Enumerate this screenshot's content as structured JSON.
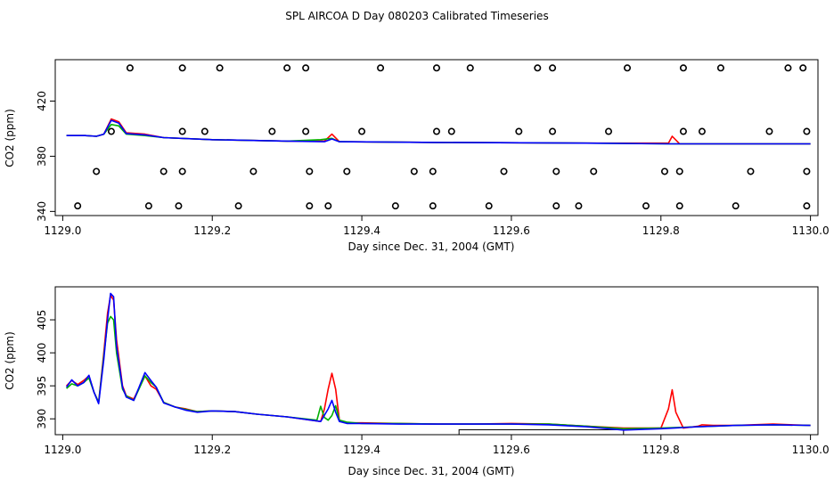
{
  "title": "SPL AIRCOA D  Day 080203  Calibrated Timeseries",
  "colors": {
    "red": "#ff0000",
    "green": "#00b000",
    "blue": "#0000ff",
    "axis": "#000000"
  },
  "chart_data": [
    {
      "type": "scatter+line",
      "xlabel": "Day since Dec. 31, 2004 (GMT)",
      "ylabel": "CO2 (ppm)",
      "xlim": [
        1128.99,
        1130.01
      ],
      "ylim": [
        337,
        450
      ],
      "xticks": [
        1129.0,
        1129.2,
        1129.4,
        1129.6,
        1129.8,
        1130.0
      ],
      "xtick_labels": [
        "1129.0",
        "1129.2",
        "1129.4",
        "1129.6",
        "1129.8",
        "1130.0"
      ],
      "yticks": [
        340,
        380,
        420
      ],
      "ytick_labels": [
        "340",
        "380",
        "420"
      ],
      "circle_groups": [
        {
          "y": 444,
          "x": [
            1129.09,
            1129.16,
            1129.21,
            1129.3,
            1129.325,
            1129.425,
            1129.5,
            1129.545,
            1129.635,
            1129.655,
            1129.755,
            1129.83,
            1129.88,
            1129.97,
            1129.99
          ]
        },
        {
          "y": 398,
          "x": [
            1129.065,
            1129.16,
            1129.19,
            1129.28,
            1129.325,
            1129.4,
            1129.5,
            1129.52,
            1129.61,
            1129.655,
            1129.73,
            1129.83,
            1129.855,
            1129.945,
            1129.995
          ]
        },
        {
          "y": 369,
          "x": [
            1129.045,
            1129.135,
            1129.16,
            1129.255,
            1129.33,
            1129.38,
            1129.47,
            1129.495,
            1129.59,
            1129.66,
            1129.71,
            1129.805,
            1129.825,
            1129.92,
            1129.995
          ]
        },
        {
          "y": 344,
          "x": [
            1129.02,
            1129.115,
            1129.155,
            1129.235,
            1129.33,
            1129.355,
            1129.445,
            1129.495,
            1129.57,
            1129.66,
            1129.69,
            1129.78,
            1129.825,
            1129.9,
            1129.995
          ]
        }
      ],
      "series": [
        {
          "name": "red",
          "color": "#ff0000",
          "x": [
            1129.005,
            1129.02,
            1129.03,
            1129.045,
            1129.055,
            1129.065,
            1129.075,
            1129.085,
            1129.11,
            1129.135,
            1129.2,
            1129.3,
            1129.35,
            1129.36,
            1129.37,
            1129.5,
            1129.7,
            1129.81,
            1129.815,
            1129.825,
            1129.9,
            1130.0
          ],
          "y": [
            395,
            395,
            395,
            394.5,
            396,
            407,
            405,
            397,
            396,
            393.5,
            392,
            391,
            391,
            396,
            390.5,
            390,
            389.5,
            389.5,
            394.5,
            389,
            389,
            389
          ]
        },
        {
          "name": "green",
          "color": "#00b000",
          "x": [
            1129.005,
            1129.02,
            1129.03,
            1129.045,
            1129.055,
            1129.065,
            1129.075,
            1129.085,
            1129.11,
            1129.135,
            1129.2,
            1129.3,
            1129.345,
            1129.36,
            1129.37,
            1129.5,
            1129.7,
            1129.81,
            1129.9,
            1130.0
          ],
          "y": [
            395,
            395,
            395,
            394.5,
            396,
            403,
            402,
            396,
            395,
            393.5,
            392,
            391,
            392,
            393,
            390.5,
            390,
            389.5,
            389,
            389,
            389
          ]
        },
        {
          "name": "blue",
          "color": "#0000ff",
          "x": [
            1129.005,
            1129.02,
            1129.03,
            1129.045,
            1129.055,
            1129.065,
            1129.075,
            1129.085,
            1129.11,
            1129.135,
            1129.2,
            1129.3,
            1129.35,
            1129.36,
            1129.37,
            1129.5,
            1129.7,
            1129.81,
            1129.9,
            1130.0
          ],
          "y": [
            395,
            395,
            395,
            394.5,
            396,
            406,
            404,
            396.5,
            395.5,
            393.5,
            392,
            391,
            390.5,
            392.5,
            390.5,
            390,
            389.5,
            389,
            389,
            389
          ]
        }
      ]
    },
    {
      "type": "line",
      "xlabel": "Day since Dec. 31, 2004 (GMT)",
      "ylabel": "CO2 (ppm)",
      "xlim": [
        1128.99,
        1130.01
      ],
      "ylim": [
        387.6,
        410
      ],
      "xticks": [
        1129.0,
        1129.2,
        1129.4,
        1129.6,
        1129.8,
        1130.0
      ],
      "xtick_labels": [
        "1129.0",
        "1129.2",
        "1129.4",
        "1129.6",
        "1129.8",
        "1130.0"
      ],
      "yticks": [
        390,
        395,
        400,
        405
      ],
      "ytick_labels": [
        "390",
        "395",
        "400",
        "405"
      ],
      "annotation": {
        "type": "bracket",
        "x": [
          1129.53,
          1129.75
        ],
        "y": 388.35
      },
      "series": [
        {
          "name": "red",
          "color": "#ff0000",
          "x": [
            1129.005,
            1129.012,
            1129.02,
            1129.028,
            1129.035,
            1129.042,
            1129.048,
            1129.055,
            1129.06,
            1129.064,
            1129.068,
            1129.072,
            1129.08,
            1129.085,
            1129.095,
            1129.11,
            1129.118,
            1129.125,
            1129.135,
            1129.15,
            1129.165,
            1129.18,
            1129.2,
            1129.23,
            1129.26,
            1129.3,
            1129.345,
            1129.35,
            1129.355,
            1129.36,
            1129.365,
            1129.37,
            1129.38,
            1129.4,
            1129.45,
            1129.5,
            1129.55,
            1129.6,
            1129.65,
            1129.7,
            1129.75,
            1129.8,
            1129.81,
            1129.815,
            1129.82,
            1129.83,
            1129.85,
            1129.855,
            1129.87,
            1129.9,
            1129.95,
            1130.0
          ],
          "y": [
            395,
            395.8,
            395.2,
            395.8,
            396.5,
            394,
            392.5,
            400,
            406,
            408.7,
            408,
            402,
            395,
            393.5,
            393,
            396.5,
            395,
            394.5,
            392.5,
            391.8,
            391.5,
            391.1,
            391.2,
            391.1,
            390.7,
            390.3,
            389.6,
            391.5,
            394.5,
            396.9,
            394.5,
            389.8,
            389.4,
            389.4,
            389.3,
            389.2,
            389.2,
            389.3,
            389.2,
            388.9,
            388.6,
            388.6,
            391.5,
            394.4,
            391,
            388.6,
            388.9,
            389.1,
            389,
            389,
            389.2,
            389
          ]
        },
        {
          "name": "green",
          "color": "#00b000",
          "x": [
            1129.005,
            1129.012,
            1129.02,
            1129.028,
            1129.035,
            1129.042,
            1129.048,
            1129.055,
            1129.06,
            1129.064,
            1129.068,
            1129.072,
            1129.08,
            1129.085,
            1129.095,
            1129.11,
            1129.118,
            1129.125,
            1129.135,
            1129.15,
            1129.165,
            1129.18,
            1129.2,
            1129.23,
            1129.26,
            1129.3,
            1129.34,
            1129.345,
            1129.35,
            1129.355,
            1129.36,
            1129.365,
            1129.37,
            1129.38,
            1129.4,
            1129.45,
            1129.5,
            1129.55,
            1129.6,
            1129.65,
            1129.7,
            1129.75,
            1129.8,
            1129.85,
            1129.9,
            1129.95,
            1130.0
          ],
          "y": [
            394.6,
            395.3,
            395,
            395.5,
            396.2,
            394,
            392.5,
            399.5,
            404.5,
            405.5,
            405,
            400,
            394.5,
            393.5,
            392.8,
            396.5,
            395.5,
            394.8,
            392.5,
            391.8,
            391.4,
            391.1,
            391.2,
            391.1,
            390.7,
            390.3,
            389.8,
            391.9,
            390.2,
            389.8,
            390.5,
            392,
            389.8,
            389.5,
            389.3,
            389.3,
            389.2,
            389.2,
            389.2,
            389.2,
            388.9,
            388.5,
            388.6,
            388.8,
            389,
            389.1,
            389
          ]
        },
        {
          "name": "blue",
          "color": "#0000ff",
          "x": [
            1129.005,
            1129.012,
            1129.02,
            1129.028,
            1129.035,
            1129.042,
            1129.048,
            1129.055,
            1129.06,
            1129.064,
            1129.068,
            1129.072,
            1129.08,
            1129.085,
            1129.095,
            1129.11,
            1129.118,
            1129.125,
            1129.135,
            1129.15,
            1129.165,
            1129.18,
            1129.2,
            1129.23,
            1129.26,
            1129.3,
            1129.345,
            1129.355,
            1129.36,
            1129.365,
            1129.37,
            1129.38,
            1129.4,
            1129.45,
            1129.5,
            1129.55,
            1129.6,
            1129.65,
            1129.7,
            1129.75,
            1129.8,
            1129.85,
            1129.9,
            1129.95,
            1130.0
          ],
          "y": [
            394.8,
            395.9,
            395,
            395.5,
            396.6,
            394,
            392.3,
            399,
            405,
            409,
            408.5,
            401,
            394.8,
            393.3,
            392.8,
            397,
            395.8,
            394.8,
            392.4,
            391.8,
            391.3,
            391,
            391.2,
            391.1,
            390.7,
            390.3,
            389.6,
            391.5,
            392.8,
            391,
            389.6,
            389.3,
            389.3,
            389.2,
            389.2,
            389.2,
            389.2,
            389.1,
            388.8,
            388.3,
            388.5,
            388.8,
            389,
            389.1,
            389
          ]
        }
      ]
    }
  ]
}
